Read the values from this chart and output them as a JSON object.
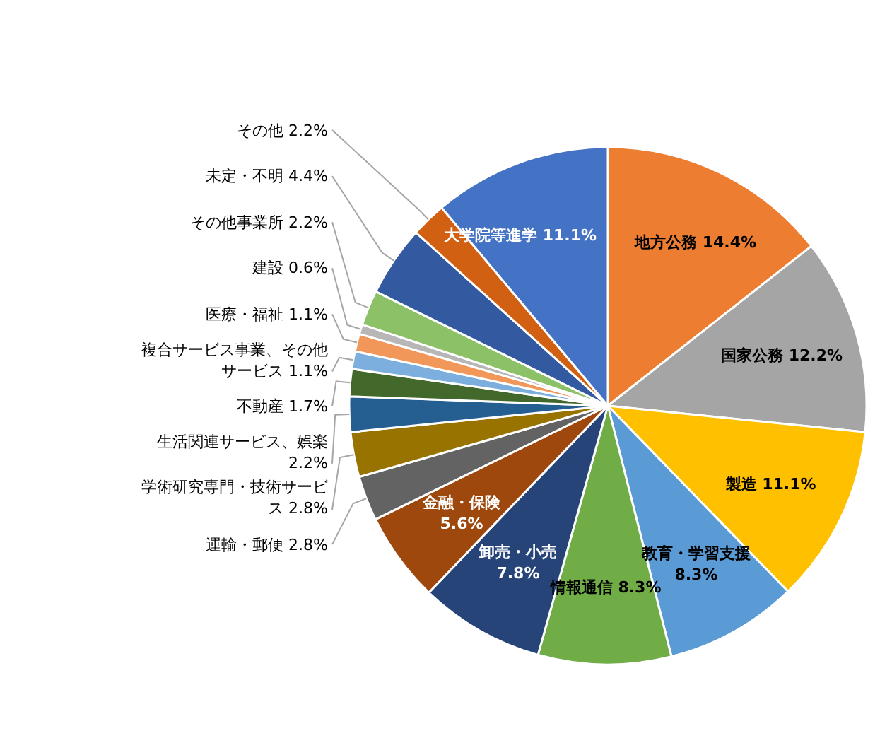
{
  "chart_data": {
    "type": "pie",
    "value_labels": [
      "14.4%",
      "12.2%",
      "11.1%",
      "8.3%",
      "8.3%",
      "7.8%",
      "5.6%",
      "2.8%",
      "2.8%",
      "2.2%",
      "1.7%",
      "1.1%",
      "1.1%",
      "0.6%",
      "2.2%",
      "4.4%",
      "2.2%",
      "11.1%"
    ],
    "categories": [
      "地方公務",
      "国家公務",
      "製造",
      "教育・学習支援",
      "情報通信",
      "卸売・小売",
      "金融・保険",
      "運輸・郵便",
      "学術研究専門・技術サービス",
      "生活関連サービス、娯楽",
      "不動産",
      "複合サービス事業、その他サービス",
      "医療・福祉",
      "建設",
      "その他事業所",
      "未定・不明",
      "その他",
      "大学院等進学"
    ],
    "values": [
      14.4,
      12.2,
      11.1,
      8.3,
      8.3,
      7.8,
      5.6,
      2.8,
      2.8,
      2.2,
      1.7,
      1.1,
      1.1,
      0.6,
      2.2,
      4.4,
      2.2,
      11.1
    ],
    "colors": [
      "#ed7d31",
      "#a5a5a5",
      "#ffc000",
      "#5b9bd5",
      "#70ad47",
      "#264478",
      "#9e480e",
      "#636363",
      "#997300",
      "#255e91",
      "#43682b",
      "#7cafdd",
      "#f1975a",
      "#b7b7b7",
      "#8cc168",
      "#335aa1",
      "#d26012",
      "#4472c4"
    ]
  }
}
